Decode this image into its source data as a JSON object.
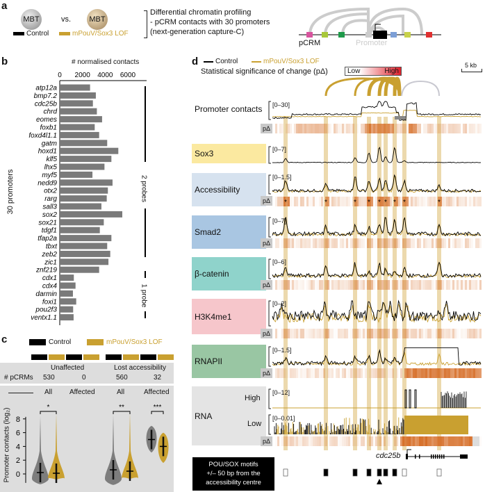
{
  "panel_a": {
    "label": "a",
    "ball1": "MBT",
    "vs": "vs.",
    "ball2": "MBT",
    "legend_control": "Control",
    "legend_lof": "mPouV/Sox3 LOF",
    "desc": [
      "Differential chromatin profiling",
      "- pCRM contacts with 30 promoters",
      "(next-generation capture-C)"
    ],
    "pcrm": "pCRM",
    "promoter": "Promoter",
    "colors": {
      "control": "#000000",
      "lof": "#c9a030"
    }
  },
  "panel_b": {
    "label": "b",
    "side_label": "30 promoters",
    "probe2": "2 probes",
    "probe1": "1 probe"
  },
  "panel_c": {
    "label": "c",
    "legend_control": "Control",
    "legend_lof": "mPouV/Sox3 LOF",
    "group1": "Unaffected",
    "group2": "Lost accessibility",
    "pcrms_label": "# pCRMs",
    "counts": [
      "530",
      "0",
      "560",
      "32"
    ],
    "sub": [
      "All",
      "Affected",
      "All",
      "Affected"
    ],
    "sig": [
      "*",
      "**",
      "***"
    ]
  },
  "panel_d": {
    "label": "d",
    "legend_control": "Control",
    "legend_lof": "mPouV/Sox3 LOF",
    "sig_title": "Statistical significance of change (pΔ)",
    "low": "Low",
    "high": "High",
    "scale": "5 kb",
    "pdelta": "pΔ",
    "tracks": [
      {
        "name": "Promoter contacts",
        "range": "[0–30]",
        "color": "#ffffff"
      },
      {
        "name": "Sox3",
        "range": "[0–7]",
        "color": "#fbe9a0"
      },
      {
        "name": "Accessibility",
        "range": "[0–1.5]",
        "color": "#d6e2ef"
      },
      {
        "name": "Smad2",
        "range": "[0–7]",
        "color": "#a9c6e2"
      },
      {
        "name": "β-catenin",
        "range": "[0–6]",
        "color": "#8fd3cb"
      },
      {
        "name": "H3K4me1",
        "range": "[0–2]",
        "color": "#f6c6cb"
      },
      {
        "name": "RNAPII",
        "range": "[0–1.5]",
        "color": "#99c6a3"
      },
      {
        "name": "RNA",
        "range": "",
        "color": "#e4e4e4"
      }
    ],
    "rna_high": "High",
    "rna_high_range": "[0–12]",
    "rna_low": "Low",
    "rna_low_range": "[0–0.01]",
    "gene": "cdc25b",
    "motif_box": [
      "POU/SOX motifs",
      "+/– 50 bp from the",
      "accessibility centre"
    ]
  },
  "chart_data": [
    {
      "type": "bar",
      "title": "",
      "xlabel": "# normalised contacts",
      "xlim": [
        0,
        7000
      ],
      "xticks": [
        0,
        2000,
        4000,
        6000
      ],
      "categories": [
        "atp12a",
        "bmp7.2",
        "cdc25b",
        "chrd",
        "eomes",
        "foxb1",
        "foxd4l1.1",
        "gatm",
        "hoxd1",
        "klf5",
        "lhx5",
        "myf5",
        "nedd9",
        "otx2",
        "rarg",
        "sall3",
        "sox2",
        "sox21",
        "tdgf1",
        "tfap2a",
        "tbxt",
        "zeb2",
        "zic1",
        "znf219",
        "cdx1",
        "cdx4",
        "darmin",
        "foxi1",
        "pou2f3",
        "ventx1.1"
      ],
      "values": [
        2670,
        3180,
        2920,
        3270,
        3730,
        3080,
        3470,
        4180,
        5160,
        4550,
        3940,
        2880,
        4650,
        4240,
        4140,
        3670,
        5510,
        3880,
        3530,
        4550,
        4180,
        4450,
        4290,
        3470,
        1240,
        1390,
        1160,
        1450,
        1180,
        1220
      ]
    },
    {
      "type": "violin",
      "ylabel": "Promoter contacts (log₂)",
      "ylim": [
        -1.5,
        9
      ],
      "yticks": [
        0,
        2,
        4,
        6,
        8
      ],
      "series": [
        {
          "name": "Control",
          "medians": [
            0.2,
            null,
            0.6,
            5.0
          ]
        },
        {
          "name": "mPouV/Sox3 LOF",
          "medians": [
            0.1,
            null,
            0.4,
            4.0
          ]
        }
      ]
    }
  ]
}
